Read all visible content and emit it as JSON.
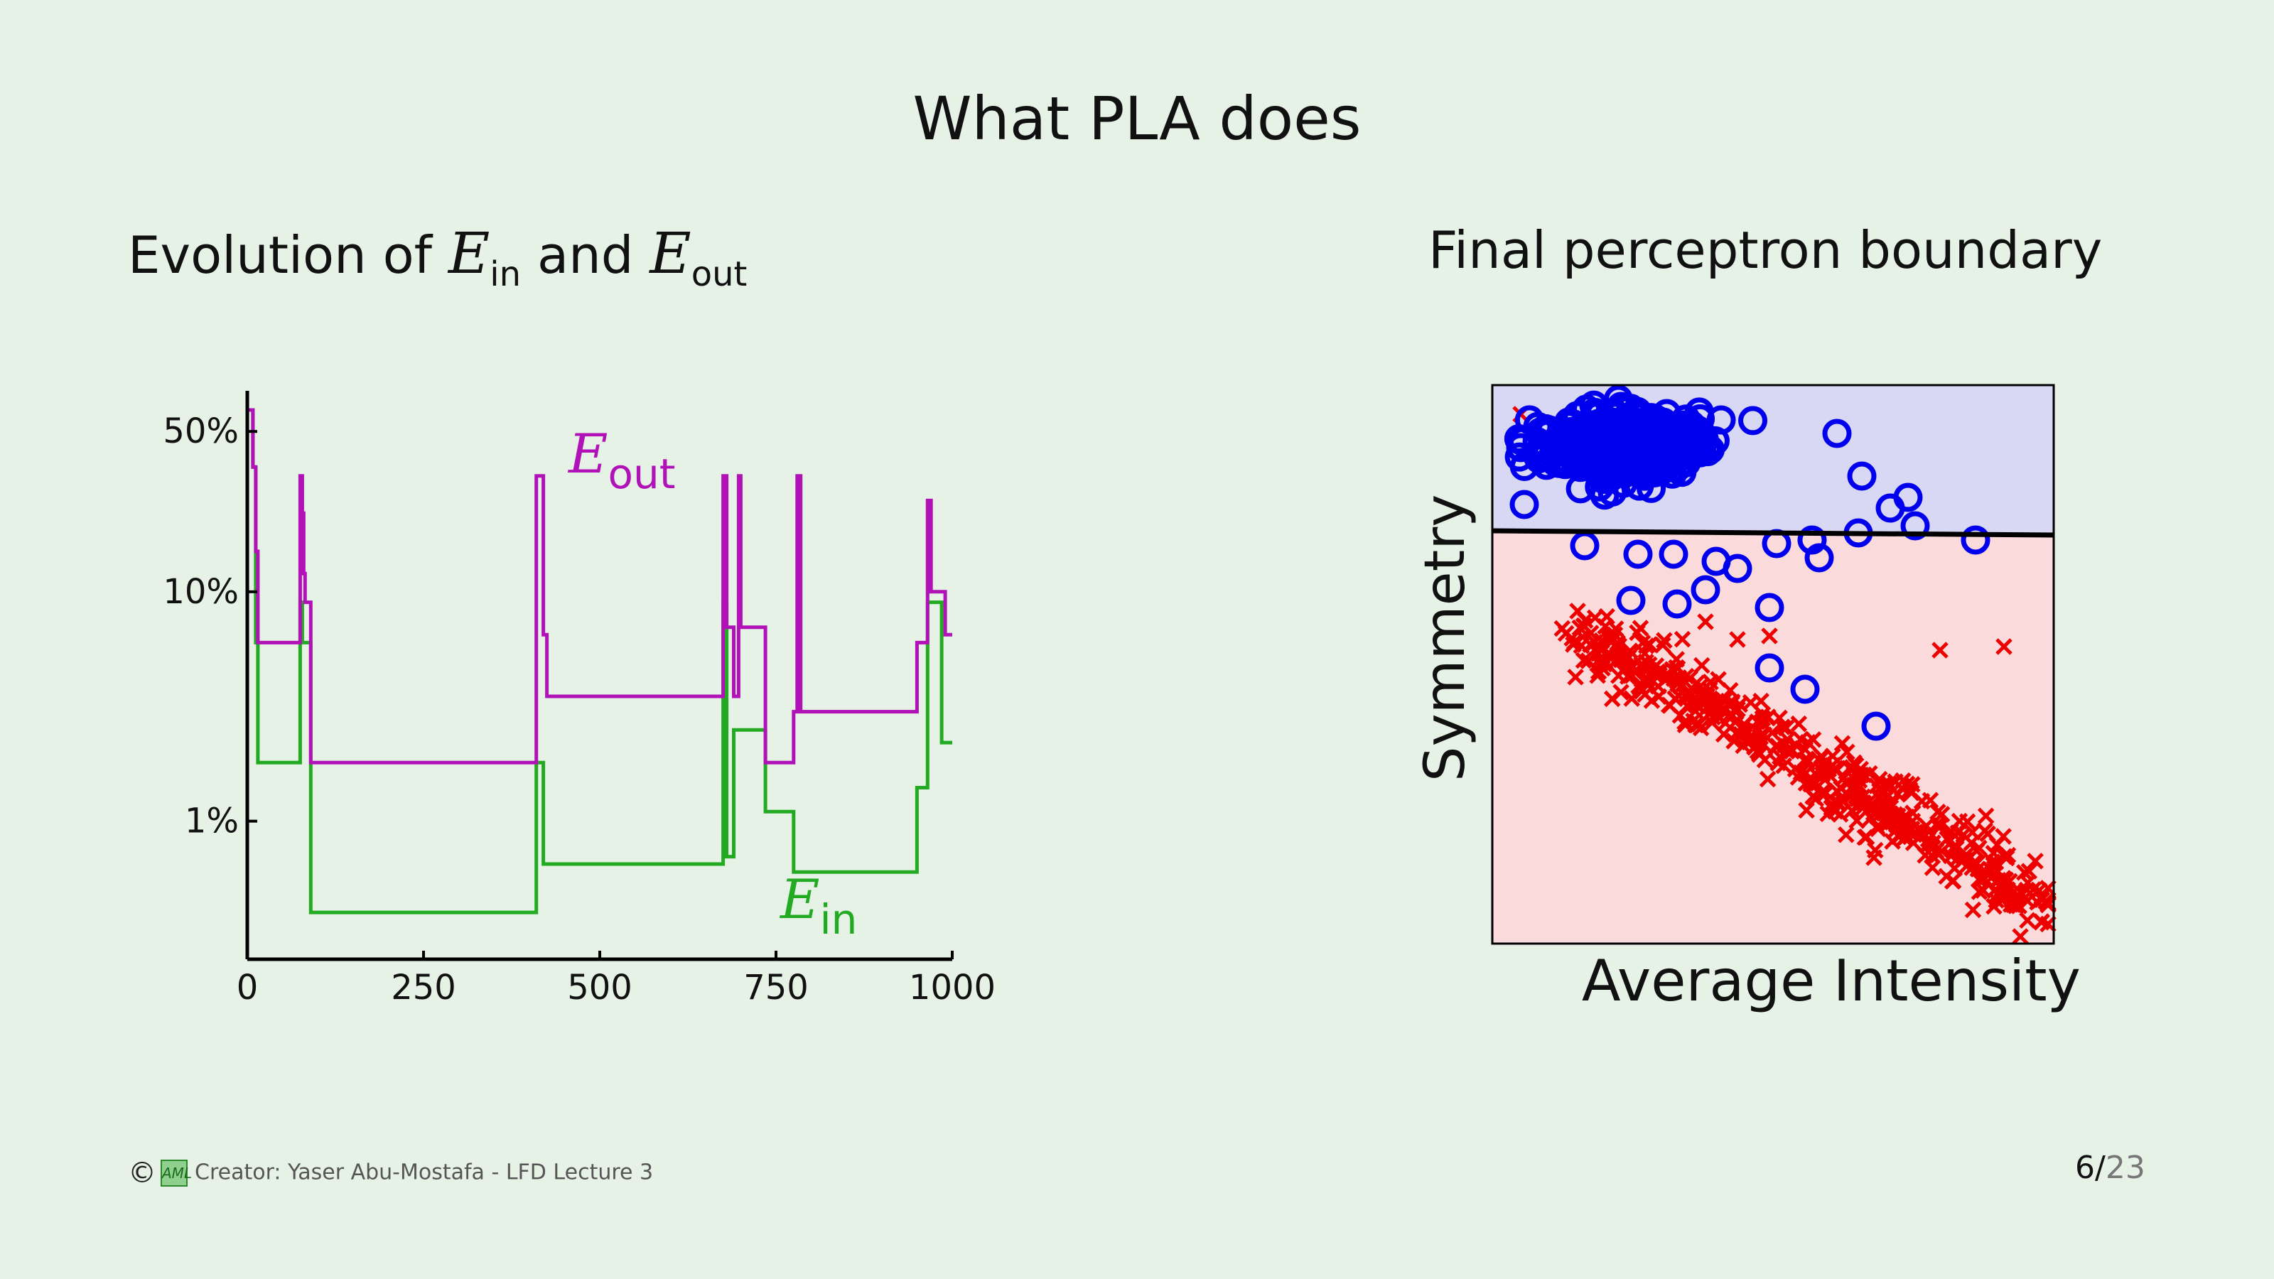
{
  "slide": {
    "title": "What PLA does",
    "left_heading": {
      "pre": "Evolution of ",
      "e1": "E",
      "e1_sub": "in",
      "mid": " and ",
      "e2": "E",
      "e2_sub": "out"
    },
    "right_heading": "Final perceptron boundary",
    "footer": {
      "copyright": "©",
      "logo": "AML",
      "text": "Creator: Yaser Abu-Mostafa - LFD Lecture 3"
    },
    "page": {
      "current": "6",
      "sep": "/",
      "total": "23"
    }
  },
  "colors": {
    "background": "#e6f2e6",
    "eout": "#b012b8",
    "ein": "#22aa22",
    "blue_class": "#0000ee",
    "red_class": "#ee0000",
    "blue_region": "#d8d8f4",
    "red_region": "#fadada"
  },
  "chart_data": [
    {
      "type": "line",
      "title": "",
      "xlabel": "",
      "ylabel": "",
      "xlim": [
        0,
        1000
      ],
      "ylim_percent": [
        0.25,
        70
      ],
      "yscale": "log",
      "xticks": [
        0,
        250,
        500,
        750,
        1000
      ],
      "xtick_labels": [
        "0",
        "250",
        "500",
        "750",
        "1000"
      ],
      "yticks_percent": [
        1,
        10,
        50
      ],
      "ytick_labels": [
        "1%",
        "10%",
        "50%"
      ],
      "series": [
        {
          "name": "Eout",
          "label": {
            "main": "E",
            "sub": "out"
          },
          "color": "#b012b8",
          "points": [
            [
              0,
              62
            ],
            [
              8,
              62
            ],
            [
              8,
              35
            ],
            [
              12,
              35
            ],
            [
              12,
              15
            ],
            [
              15,
              15
            ],
            [
              15,
              6
            ],
            [
              75,
              6
            ],
            [
              75,
              32
            ],
            [
              78,
              32
            ],
            [
              78,
              22
            ],
            [
              80,
              22
            ],
            [
              80,
              12
            ],
            [
              82,
              12
            ],
            [
              82,
              9
            ],
            [
              90,
              9
            ],
            [
              90,
              1.8
            ],
            [
              410,
              1.8
            ],
            [
              410,
              32
            ],
            [
              420,
              32
            ],
            [
              420,
              6.5
            ],
            [
              425,
              6.5
            ],
            [
              425,
              3.5
            ],
            [
              675,
              3.5
            ],
            [
              675,
              32
            ],
            [
              680,
              32
            ],
            [
              680,
              7
            ],
            [
              690,
              7
            ],
            [
              690,
              3.5
            ],
            [
              697,
              3.5
            ],
            [
              697,
              32
            ],
            [
              700,
              32
            ],
            [
              700,
              7
            ],
            [
              735,
              7
            ],
            [
              735,
              1.8
            ],
            [
              775,
              1.8
            ],
            [
              775,
              3
            ],
            [
              780,
              3
            ],
            [
              780,
              32
            ],
            [
              785,
              32
            ],
            [
              785,
              3
            ],
            [
              950,
              3
            ],
            [
              950,
              6
            ],
            [
              965,
              6
            ],
            [
              965,
              25
            ],
            [
              970,
              25
            ],
            [
              970,
              10
            ],
            [
              990,
              10
            ],
            [
              990,
              6.5
            ],
            [
              1000,
              6.5
            ]
          ]
        },
        {
          "name": "Ein",
          "label": {
            "main": "E",
            "sub": "in"
          },
          "color": "#22aa22",
          "points": [
            [
              0,
              62
            ],
            [
              8,
              62
            ],
            [
              8,
              35
            ],
            [
              12,
              35
            ],
            [
              12,
              6
            ],
            [
              15,
              6
            ],
            [
              15,
              1.8
            ],
            [
              75,
              1.8
            ],
            [
              75,
              9
            ],
            [
              78,
              9
            ],
            [
              78,
              6
            ],
            [
              90,
              6
            ],
            [
              90,
              0.4
            ],
            [
              410,
              0.4
            ],
            [
              410,
              1.8
            ],
            [
              420,
              1.8
            ],
            [
              420,
              0.65
            ],
            [
              675,
              0.65
            ],
            [
              675,
              9
            ],
            [
              680,
              9
            ],
            [
              680,
              0.7
            ],
            [
              690,
              0.7
            ],
            [
              690,
              2.5
            ],
            [
              735,
              2.5
            ],
            [
              735,
              1.1
            ],
            [
              775,
              1.1
            ],
            [
              775,
              0.6
            ],
            [
              950,
              0.6
            ],
            [
              950,
              1.4
            ],
            [
              965,
              1.4
            ],
            [
              965,
              9
            ],
            [
              985,
              9
            ],
            [
              985,
              2.2
            ],
            [
              1000,
              2.2
            ]
          ]
        }
      ]
    },
    {
      "type": "scatter",
      "title": "",
      "xlabel": "Average Intensity",
      "ylabel": "Symmetry",
      "axis_ticks": false,
      "boundary": "horizontal line",
      "regions": [
        "blue above boundary",
        "red below boundary"
      ],
      "series": [
        {
          "name": "",
          "marker": "circle",
          "color": "#0000ee"
        },
        {
          "name": "",
          "marker": "x",
          "color": "#ee0000"
        }
      ]
    }
  ]
}
